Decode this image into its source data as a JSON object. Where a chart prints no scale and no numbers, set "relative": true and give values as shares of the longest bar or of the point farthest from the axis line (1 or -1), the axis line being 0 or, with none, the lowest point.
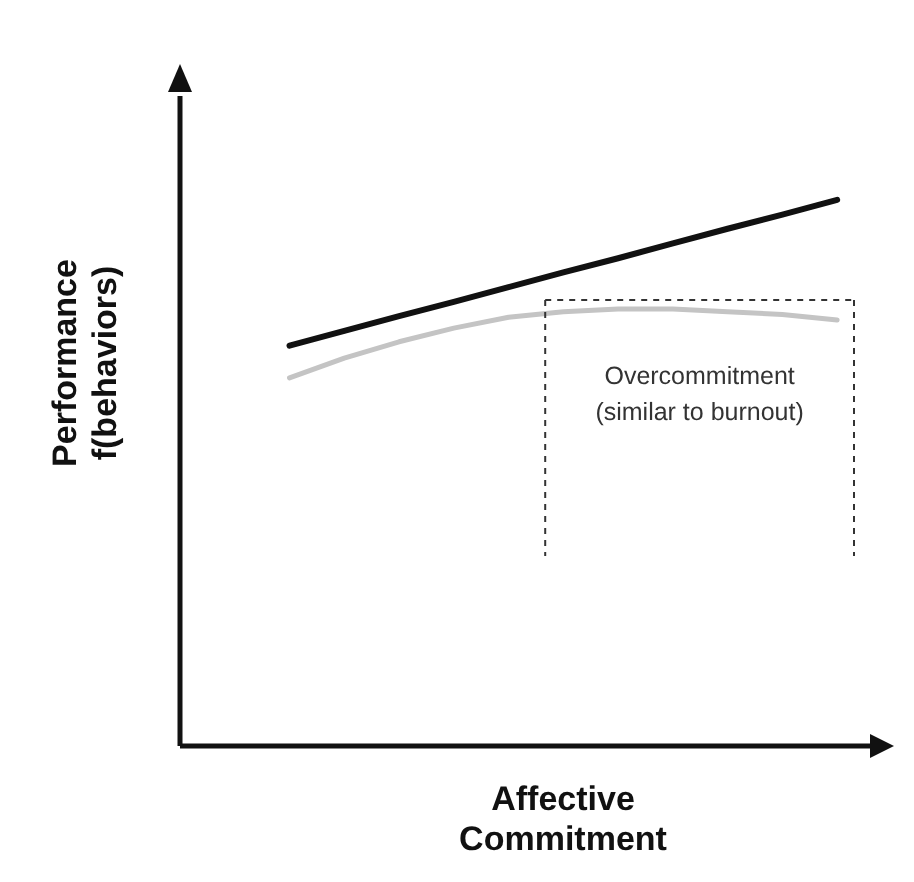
{
  "chart_data": {
    "type": "line",
    "relative": true,
    "xlabel": "Affective Commitment",
    "ylabel": "Performance f(behaviors)",
    "categories": [
      null,
      null,
      null,
      null,
      null,
      null,
      null,
      null,
      null,
      null,
      null,
      null,
      null
    ],
    "series": [
      {
        "color": "#111111",
        "values": [
          null,
          null,
          0.733,
          0.76,
          0.787,
          0.813,
          0.84,
          0.867,
          0.893,
          0.92,
          0.947,
          0.973,
          1
        ]
      },
      {
        "color": "#c4c4c4",
        "values": [
          null,
          null,
          0.674,
          0.71,
          0.74,
          0.765,
          0.785,
          0.795,
          0.8,
          0.8,
          0.795,
          0.79,
          0.78
        ]
      }
    ],
    "annotations": [
      "Overcommitment (similar to burnout)"
    ],
    "grid": false,
    "marker": "none",
    "line_style": "solid"
  }
}
